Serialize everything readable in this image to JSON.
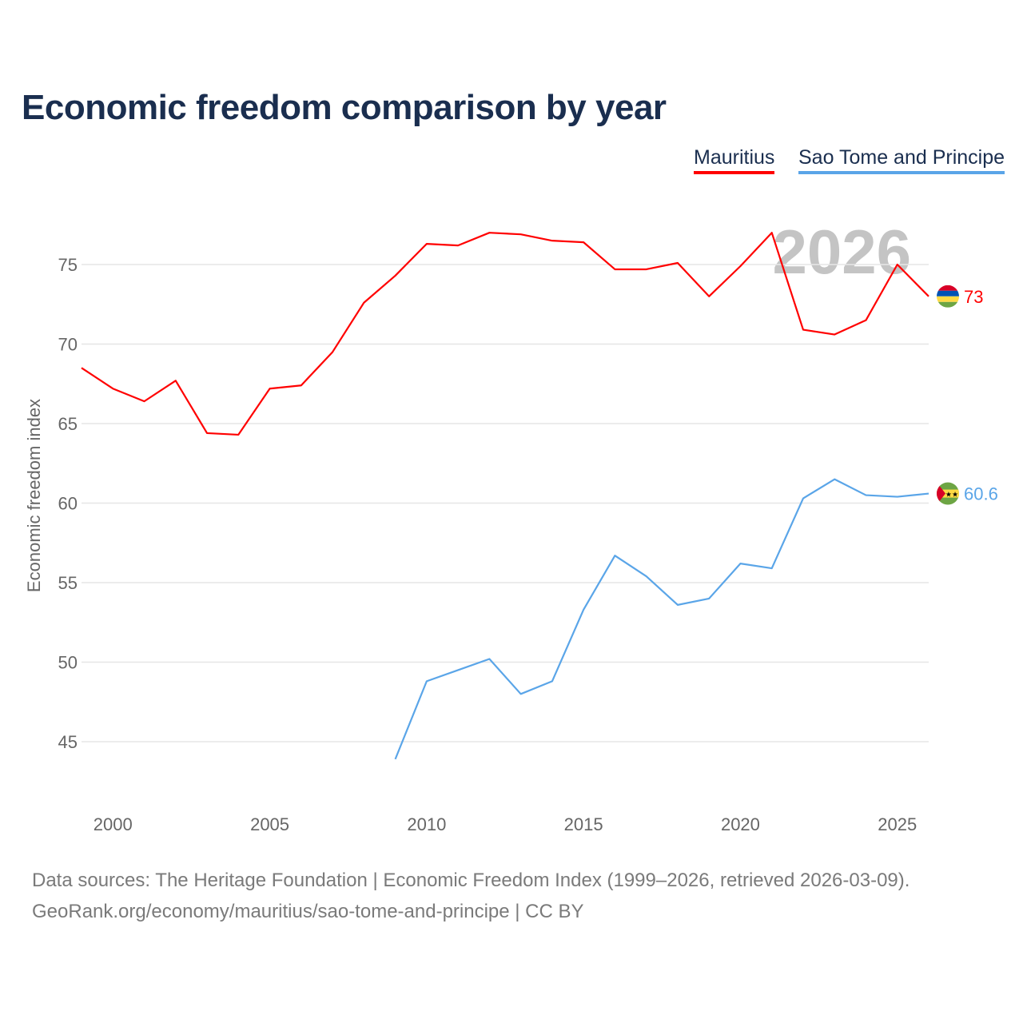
{
  "chart_data": {
    "type": "line",
    "title": "Economic freedom comparison by year",
    "xlabel": "",
    "ylabel": "Economic freedom index",
    "xlim": [
      1999,
      2026
    ],
    "ylim": [
      41,
      79
    ],
    "grid": true,
    "legend_placement": "top-right",
    "x_ticks": [
      2000,
      2005,
      2010,
      2015,
      2020,
      2025
    ],
    "y_ticks": [
      45,
      50,
      55,
      60,
      65,
      70,
      75
    ],
    "year_watermark": "2026",
    "series": [
      {
        "name": "Mauritius",
        "color": "#ff0000",
        "end_label": "73",
        "x": [
          1999,
          2000,
          2001,
          2002,
          2003,
          2004,
          2005,
          2006,
          2007,
          2008,
          2009,
          2010,
          2011,
          2012,
          2013,
          2014,
          2015,
          2016,
          2017,
          2018,
          2019,
          2020,
          2021,
          2022,
          2023,
          2024,
          2025,
          2026
        ],
        "y": [
          68.5,
          67.2,
          66.4,
          67.7,
          64.4,
          64.3,
          67.2,
          67.4,
          69.5,
          72.6,
          74.3,
          76.3,
          76.2,
          77.0,
          76.9,
          76.5,
          76.4,
          74.7,
          74.7,
          75.1,
          73.0,
          74.9,
          77.0,
          70.9,
          70.6,
          71.5,
          75.0,
          73.0
        ]
      },
      {
        "name": "Sao Tome and Principe",
        "color": "#5aa5e8",
        "end_label": "60.6",
        "x": [
          2009,
          2010,
          2011,
          2012,
          2013,
          2014,
          2015,
          2016,
          2017,
          2018,
          2019,
          2020,
          2021,
          2022,
          2023,
          2024,
          2025,
          2026
        ],
        "y": [
          43.9,
          48.8,
          49.5,
          50.2,
          48.0,
          48.8,
          53.3,
          56.7,
          55.4,
          53.6,
          54.0,
          56.2,
          55.9,
          60.3,
          61.5,
          60.5,
          60.4,
          60.6
        ]
      }
    ]
  },
  "footer": {
    "line1": "Data sources: The Heritage Foundation | Economic Freedom Index (1999–2026, retrieved 2026-03-09).",
    "line2": "GeoRank.org/economy/mauritius/sao-tome-and-principe | CC BY"
  }
}
